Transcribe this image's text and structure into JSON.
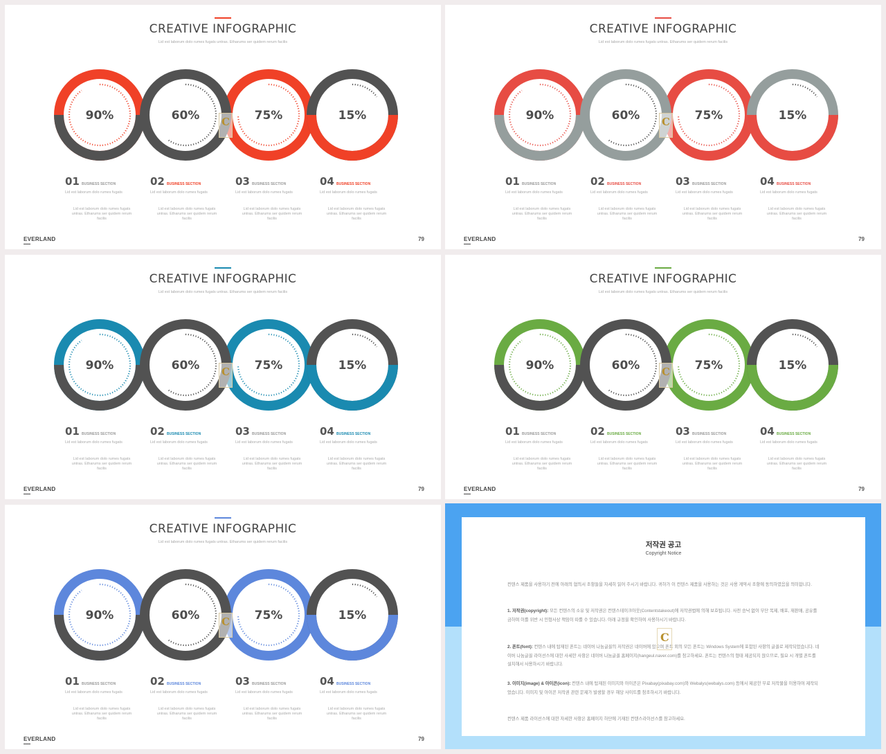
{
  "slides": [
    {
      "accent": "#f04127",
      "ring_colors": [
        "#f04127",
        "#525252",
        "#f04127",
        "#525252"
      ]
    },
    {
      "accent": "#e74c43",
      "ring_colors": [
        "#e74c43",
        "#959e9d",
        "#e74c43",
        "#959e9d"
      ]
    },
    {
      "accent": "#1a8ab0",
      "ring_colors": [
        "#1a8ab0",
        "#525252",
        "#1a8ab0",
        "#525252"
      ]
    },
    {
      "accent": "#6aab43",
      "ring_colors": [
        "#6aab43",
        "#525252",
        "#6aab43",
        "#525252"
      ]
    },
    {
      "accent": "#5d87dc",
      "ring_colors": [
        "#5d87dc",
        "#525252",
        "#5d87dc",
        "#525252"
      ]
    }
  ],
  "title": "CREATIVE INFOGRAPHIC",
  "subtitle": "Lid est laborum dolo rumes fugats untras. Etharums ser quidem rerum facilis",
  "rings": [
    {
      "value": 0.9,
      "label": "90%"
    },
    {
      "value": 0.6,
      "label": "60%"
    },
    {
      "value": 0.75,
      "label": "75%"
    },
    {
      "value": 0.15,
      "label": "15%"
    }
  ],
  "sections": [
    {
      "num": "01",
      "label": "BUSINESS SECTION",
      "line": "Lid est laborum dolo rumes fugats",
      "body": "Lid est laborum dolo rumes fugats untras. Etharums ser quidem rerum facilis",
      "accent": false
    },
    {
      "num": "02",
      "label": "BUSINESS SECTION",
      "line": "Lid est laborum dolo rumes fugats",
      "body": "Lid est laborum dolo rumes fugats untras. Etharums ser quidem rerum facilis",
      "accent": true
    },
    {
      "num": "03",
      "label": "BUSINESS SECTION",
      "line": "Lid est laborum dolo rumes fugats",
      "body": "Lid est laborum dolo rumes fugats untras. Etharums ser quidem rerum facilis",
      "accent": false
    },
    {
      "num": "04",
      "label": "BUSINESS SECTION",
      "line": "Lid est laborum dolo rumes fugats",
      "body": "Lid est laborum dolo rumes fugats untras. Etharums ser quidem rerum facilis",
      "accent": true
    }
  ],
  "brand": "EVERLAND",
  "page_number": "79",
  "logo_letter": "C",
  "copyright": {
    "title": "저작권 공고",
    "subtitle": "Copyright Notice",
    "intro": "컨텐스 제품을 사용하기 전에 아래의 협의서 조항들을 자세히 읽어 주시기 바랍니다. 귀하가 이 컨텐스 제품을 사용하는 것은 사용 계약서 조항에 동의하였음을 의미합니다.",
    "p1_head": "1. 저작권(copyright):",
    "p1_body": " 모든 컨텐스의 소유 및 저작권은 컨텐스테이크아웃(Contentstakeout)에 저작권법에 의해 보호됩니다. 사전 승낙 없이 무단 복제, 배포, 재판매, 공유를 금하며 이를 위반 시 민형사상 책임이 따를 수 있습니다. 아래 규정을 확인하여 사용하시기 바랍니다.",
    "p2_head": "2. 폰트(font):",
    "p2_body": " 컨텐스 내에 탑재된 폰트는 네이버 나눔글꼴의 저작권은 네이버에 있으며 폰트 외의 모든 폰트는 Windows System에 포함된 사항의 글꼴로 제작되었습니다. 네이버 나눔글꼴 라이선스에 대한 사세한 사항은 네이버 나눔글꼴 홈페이지(hangeul.naver.com)를 참고하세요. 폰트는 컨텐스의 형태 제공되지 않으므로, 필요 시 개별 폰트를 설치해서 사용하시기 바랍니다.",
    "p3_head": "3. 이미지(image) & 아이콘(icon):",
    "p3_body": " 컨텐스 내에 탑재된 이미지와 아이콘은 Pixabay(pixabay.com)와 Webalys(webalys.com) 등에서 제공한 무료 저작물을 이용하여 제작되었습니다. 이미지 및 아이콘 저작권 관련 문제가 발생할 경우 해당 사이트를 참조하시기 바랍니다.",
    "outro": "컨텐스 제품 라이선스에 대한 자세한 사항은 홈페이지 하단에 기재된 컨텐스라이선스를 참고하세요."
  }
}
